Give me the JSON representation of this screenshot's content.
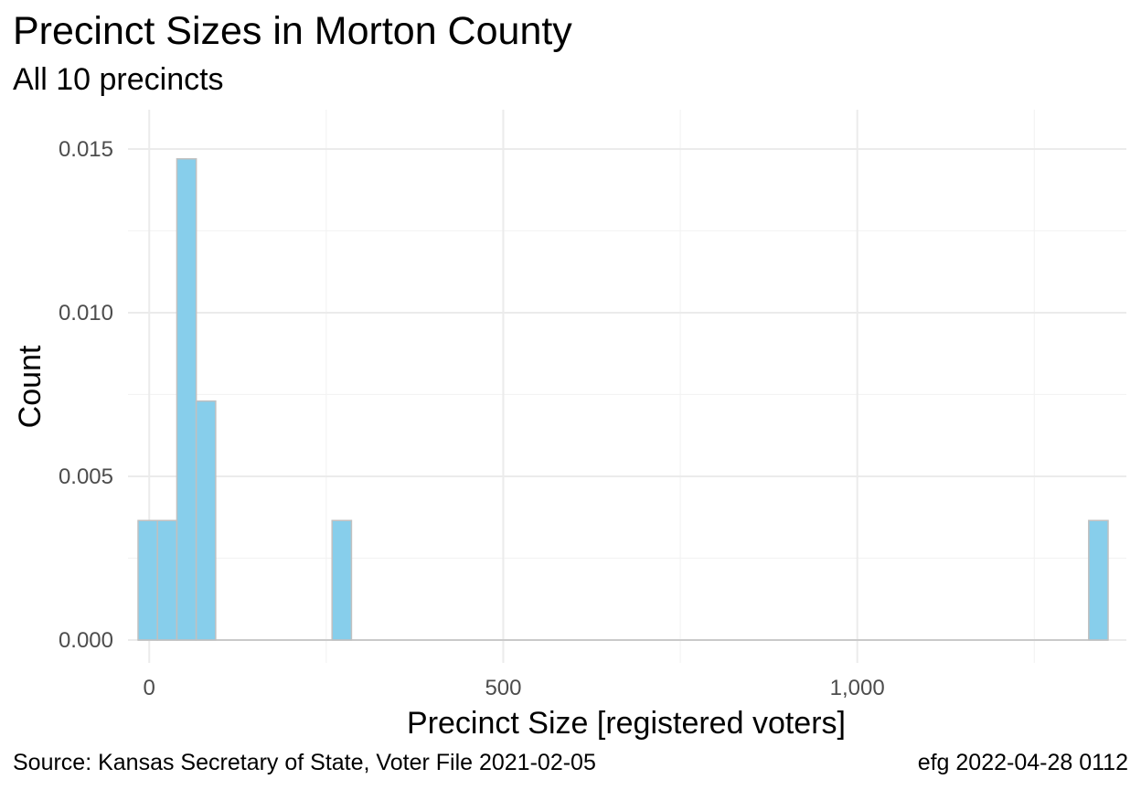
{
  "header": {
    "title": "Precinct Sizes in Morton County",
    "subtitle": "All 10 precincts"
  },
  "footer": {
    "source": "Source:  Kansas Secretary of State, Voter File  2021-02-05",
    "credit": "efg 2022-04-28 0112"
  },
  "colors": {
    "bar_fill": "#87ceeb",
    "bar_stroke": "#c0c0c0",
    "grid_major": "#ebebeb",
    "grid_minor": "#f3f3f3",
    "tick_text": "#4d4d4d"
  },
  "chart_data": {
    "type": "bar",
    "title": "Precinct Sizes in Morton County",
    "subtitle": "All 10 precincts",
    "xlabel": "Precinct Size [registered voters]",
    "ylabel": "Count",
    "xlim": [
      -30,
      1380
    ],
    "ylim": [
      -0.0007,
      0.0162
    ],
    "x_ticks": [
      0,
      500,
      1000
    ],
    "x_tick_labels": [
      "0",
      "500",
      "1,000"
    ],
    "x_minor_ticks": [
      250,
      750,
      1250
    ],
    "y_ticks": [
      0,
      0.005,
      0.01,
      0.015
    ],
    "y_tick_labels": [
      "0.000",
      "0.005",
      "0.010",
      "0.015"
    ],
    "y_minor_ticks": [
      0.0025,
      0.0075,
      0.0125
    ],
    "bin_width": 27.4,
    "bins": [
      {
        "x0": -15.8,
        "x1": 11.6,
        "value": 0.00365
      },
      {
        "x0": 11.6,
        "x1": 39.0,
        "value": 0.00365
      },
      {
        "x0": 39.0,
        "x1": 66.4,
        "value": 0.0147
      },
      {
        "x0": 66.4,
        "x1": 93.8,
        "value": 0.0073
      },
      {
        "x0": 258.2,
        "x1": 285.6,
        "value": 0.00365
      },
      {
        "x0": 1326.8,
        "x1": 1354.2,
        "value": 0.00365
      }
    ],
    "grid": true,
    "legend": "none"
  }
}
